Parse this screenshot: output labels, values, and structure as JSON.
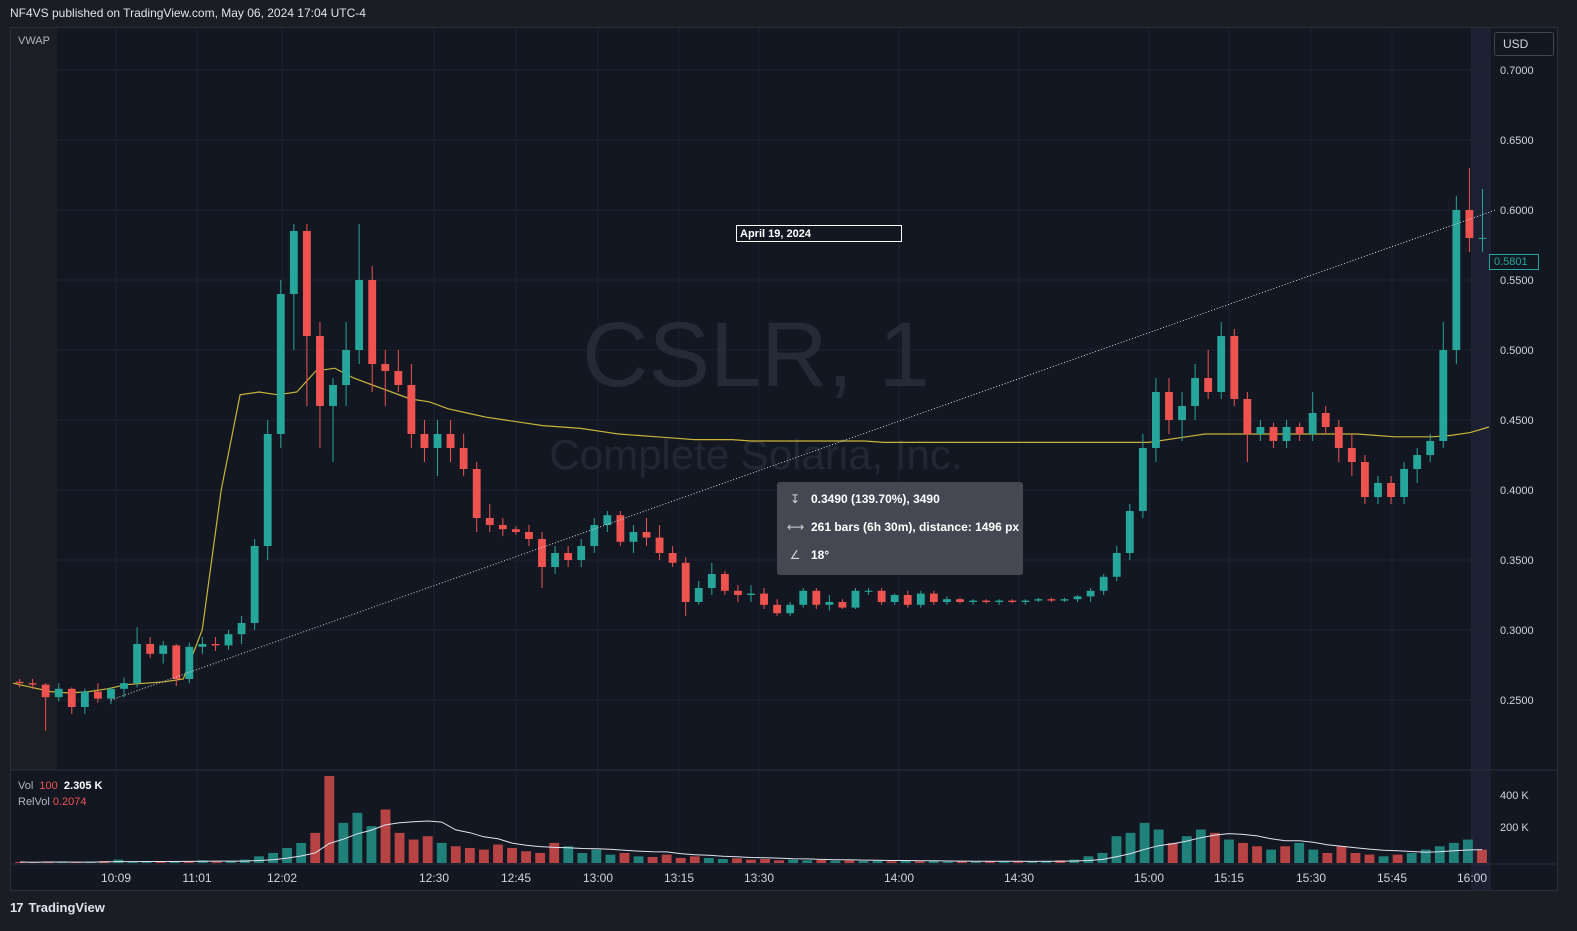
{
  "header": {
    "published": "NF4VS published on TradingView.com, May 06, 2024 17:04 UTC-4"
  },
  "footer": {
    "brand": "TradingView",
    "logo_icon": "tradingview-logo-icon"
  },
  "toolbar": {
    "currency": "USD"
  },
  "indicators": {
    "vwap_label": "VWAP"
  },
  "watermark": {
    "symbol": "CSLR, 1",
    "company": "Complete Solaria, Inc."
  },
  "annotation": {
    "date_label": "April 19, 2024"
  },
  "measure": {
    "price_range": "0.3490 (139.70%), 3490",
    "bars_range": "261 bars (6h 30m), distance: 1496 px",
    "angle": "18°"
  },
  "volume_legend": {
    "vol_label": "Vol",
    "vol_length": "100",
    "vol_value": "2.305 K",
    "relvol_label": "RelVol",
    "relvol_value": "0.2074"
  },
  "colors": {
    "background": "#131722",
    "up": "#26a69a",
    "down": "#ef5350",
    "vwap": "#c9b43a",
    "volume_ma": "#e0e3eb",
    "grid": "#1e222d"
  },
  "chart_data": {
    "type": "candlestick",
    "symbol": "CSLR",
    "interval": "1",
    "current_price": "0.5801",
    "y_ticks": [
      "0.7000",
      "0.6500",
      "0.6000",
      "0.5500",
      "0.5000",
      "0.4500",
      "0.4000",
      "0.3500",
      "0.3000",
      "0.2500"
    ],
    "x_ticks": [
      "10:09",
      "11:01",
      "12:02",
      "12:30",
      "12:45",
      "13:00",
      "13:15",
      "13:30",
      "14:00",
      "14:30",
      "15:00",
      "15:15",
      "15:30",
      "15:45",
      "16:00"
    ],
    "volume_ticks": [
      "400 K",
      "200 K"
    ],
    "ylim": [
      0.2,
      0.73
    ],
    "candles": [
      {
        "o": 0.263,
        "h": 0.265,
        "l": 0.259,
        "c": 0.262
      },
      {
        "o": 0.262,
        "h": 0.265,
        "l": 0.258,
        "c": 0.261
      },
      {
        "o": 0.261,
        "h": 0.262,
        "l": 0.228,
        "c": 0.252
      },
      {
        "o": 0.252,
        "h": 0.262,
        "l": 0.249,
        "c": 0.258
      },
      {
        "o": 0.258,
        "h": 0.259,
        "l": 0.24,
        "c": 0.245
      },
      {
        "o": 0.245,
        "h": 0.258,
        "l": 0.24,
        "c": 0.256
      },
      {
        "o": 0.256,
        "h": 0.262,
        "l": 0.248,
        "c": 0.251
      },
      {
        "o": 0.251,
        "h": 0.259,
        "l": 0.247,
        "c": 0.258
      },
      {
        "o": 0.258,
        "h": 0.266,
        "l": 0.252,
        "c": 0.262
      },
      {
        "o": 0.262,
        "h": 0.302,
        "l": 0.259,
        "c": 0.29
      },
      {
        "o": 0.29,
        "h": 0.295,
        "l": 0.28,
        "c": 0.283
      },
      {
        "o": 0.283,
        "h": 0.292,
        "l": 0.276,
        "c": 0.289
      },
      {
        "o": 0.289,
        "h": 0.29,
        "l": 0.26,
        "c": 0.265
      },
      {
        "o": 0.265,
        "h": 0.291,
        "l": 0.262,
        "c": 0.288
      },
      {
        "o": 0.288,
        "h": 0.295,
        "l": 0.283,
        "c": 0.29
      },
      {
        "o": 0.29,
        "h": 0.295,
        "l": 0.285,
        "c": 0.289
      },
      {
        "o": 0.289,
        "h": 0.3,
        "l": 0.286,
        "c": 0.297
      },
      {
        "o": 0.297,
        "h": 0.31,
        "l": 0.29,
        "c": 0.305
      },
      {
        "o": 0.305,
        "h": 0.365,
        "l": 0.3,
        "c": 0.36
      },
      {
        "o": 0.36,
        "h": 0.45,
        "l": 0.35,
        "c": 0.44
      },
      {
        "o": 0.44,
        "h": 0.55,
        "l": 0.43,
        "c": 0.54
      },
      {
        "o": 0.54,
        "h": 0.59,
        "l": 0.5,
        "c": 0.585
      },
      {
        "o": 0.585,
        "h": 0.59,
        "l": 0.46,
        "c": 0.51
      },
      {
        "o": 0.51,
        "h": 0.52,
        "l": 0.43,
        "c": 0.46
      },
      {
        "o": 0.46,
        "h": 0.48,
        "l": 0.42,
        "c": 0.475
      },
      {
        "o": 0.475,
        "h": 0.52,
        "l": 0.46,
        "c": 0.5
      },
      {
        "o": 0.5,
        "h": 0.59,
        "l": 0.49,
        "c": 0.55
      },
      {
        "o": 0.55,
        "h": 0.56,
        "l": 0.47,
        "c": 0.49
      },
      {
        "o": 0.49,
        "h": 0.5,
        "l": 0.46,
        "c": 0.485
      },
      {
        "o": 0.485,
        "h": 0.5,
        "l": 0.47,
        "c": 0.475
      },
      {
        "o": 0.475,
        "h": 0.49,
        "l": 0.43,
        "c": 0.44
      },
      {
        "o": 0.44,
        "h": 0.45,
        "l": 0.42,
        "c": 0.43
      },
      {
        "o": 0.43,
        "h": 0.45,
        "l": 0.41,
        "c": 0.44
      },
      {
        "o": 0.44,
        "h": 0.45,
        "l": 0.42,
        "c": 0.43
      },
      {
        "o": 0.43,
        "h": 0.44,
        "l": 0.41,
        "c": 0.415
      },
      {
        "o": 0.415,
        "h": 0.42,
        "l": 0.37,
        "c": 0.38
      },
      {
        "o": 0.38,
        "h": 0.39,
        "l": 0.37,
        "c": 0.375
      },
      {
        "o": 0.375,
        "h": 0.38,
        "l": 0.367,
        "c": 0.372
      },
      {
        "o": 0.372,
        "h": 0.374,
        "l": 0.368,
        "c": 0.37
      },
      {
        "o": 0.37,
        "h": 0.375,
        "l": 0.36,
        "c": 0.365
      },
      {
        "o": 0.365,
        "h": 0.37,
        "l": 0.33,
        "c": 0.345
      },
      {
        "o": 0.345,
        "h": 0.36,
        "l": 0.34,
        "c": 0.355
      },
      {
        "o": 0.355,
        "h": 0.36,
        "l": 0.345,
        "c": 0.35
      },
      {
        "o": 0.35,
        "h": 0.365,
        "l": 0.345,
        "c": 0.36
      },
      {
        "o": 0.36,
        "h": 0.38,
        "l": 0.355,
        "c": 0.375
      },
      {
        "o": 0.375,
        "h": 0.385,
        "l": 0.37,
        "c": 0.382
      },
      {
        "o": 0.382,
        "h": 0.385,
        "l": 0.36,
        "c": 0.363
      },
      {
        "o": 0.363,
        "h": 0.375,
        "l": 0.355,
        "c": 0.37
      },
      {
        "o": 0.37,
        "h": 0.38,
        "l": 0.36,
        "c": 0.366
      },
      {
        "o": 0.366,
        "h": 0.375,
        "l": 0.35,
        "c": 0.355
      },
      {
        "o": 0.355,
        "h": 0.36,
        "l": 0.345,
        "c": 0.348
      },
      {
        "o": 0.348,
        "h": 0.352,
        "l": 0.31,
        "c": 0.32
      },
      {
        "o": 0.32,
        "h": 0.335,
        "l": 0.318,
        "c": 0.33
      },
      {
        "o": 0.33,
        "h": 0.348,
        "l": 0.325,
        "c": 0.34
      },
      {
        "o": 0.34,
        "h": 0.342,
        "l": 0.325,
        "c": 0.328
      },
      {
        "o": 0.328,
        "h": 0.332,
        "l": 0.32,
        "c": 0.325
      },
      {
        "o": 0.325,
        "h": 0.332,
        "l": 0.32,
        "c": 0.326
      },
      {
        "o": 0.326,
        "h": 0.33,
        "l": 0.315,
        "c": 0.318
      },
      {
        "o": 0.318,
        "h": 0.322,
        "l": 0.31,
        "c": 0.312
      },
      {
        "o": 0.312,
        "h": 0.32,
        "l": 0.31,
        "c": 0.318
      },
      {
        "o": 0.318,
        "h": 0.33,
        "l": 0.316,
        "c": 0.328
      },
      {
        "o": 0.328,
        "h": 0.33,
        "l": 0.315,
        "c": 0.318
      },
      {
        "o": 0.318,
        "h": 0.325,
        "l": 0.314,
        "c": 0.32
      },
      {
        "o": 0.32,
        "h": 0.322,
        "l": 0.315,
        "c": 0.316
      },
      {
        "o": 0.316,
        "h": 0.33,
        "l": 0.315,
        "c": 0.328
      },
      {
        "o": 0.328,
        "h": 0.33,
        "l": 0.325,
        "c": 0.328
      },
      {
        "o": 0.328,
        "h": 0.33,
        "l": 0.318,
        "c": 0.32
      },
      {
        "o": 0.32,
        "h": 0.326,
        "l": 0.318,
        "c": 0.325
      },
      {
        "o": 0.325,
        "h": 0.328,
        "l": 0.316,
        "c": 0.318
      },
      {
        "o": 0.318,
        "h": 0.328,
        "l": 0.316,
        "c": 0.326
      },
      {
        "o": 0.326,
        "h": 0.328,
        "l": 0.318,
        "c": 0.32
      },
      {
        "o": 0.32,
        "h": 0.324,
        "l": 0.318,
        "c": 0.322
      },
      {
        "o": 0.322,
        "h": 0.323,
        "l": 0.319,
        "c": 0.32
      },
      {
        "o": 0.32,
        "h": 0.322,
        "l": 0.318,
        "c": 0.321
      },
      {
        "o": 0.321,
        "h": 0.322,
        "l": 0.319,
        "c": 0.32
      },
      {
        "o": 0.32,
        "h": 0.322,
        "l": 0.318,
        "c": 0.321
      },
      {
        "o": 0.321,
        "h": 0.322,
        "l": 0.319,
        "c": 0.32
      },
      {
        "o": 0.32,
        "h": 0.322,
        "l": 0.318,
        "c": 0.321
      },
      {
        "o": 0.321,
        "h": 0.323,
        "l": 0.32,
        "c": 0.322
      },
      {
        "o": 0.322,
        "h": 0.323,
        "l": 0.32,
        "c": 0.321
      },
      {
        "o": 0.321,
        "h": 0.323,
        "l": 0.32,
        "c": 0.322
      },
      {
        "o": 0.322,
        "h": 0.325,
        "l": 0.32,
        "c": 0.324
      },
      {
        "o": 0.324,
        "h": 0.33,
        "l": 0.32,
        "c": 0.328
      },
      {
        "o": 0.328,
        "h": 0.34,
        "l": 0.325,
        "c": 0.338
      },
      {
        "o": 0.338,
        "h": 0.36,
        "l": 0.335,
        "c": 0.355
      },
      {
        "o": 0.355,
        "h": 0.39,
        "l": 0.35,
        "c": 0.385
      },
      {
        "o": 0.385,
        "h": 0.44,
        "l": 0.38,
        "c": 0.43
      },
      {
        "o": 0.43,
        "h": 0.48,
        "l": 0.42,
        "c": 0.47
      },
      {
        "o": 0.47,
        "h": 0.48,
        "l": 0.44,
        "c": 0.45
      },
      {
        "o": 0.45,
        "h": 0.47,
        "l": 0.435,
        "c": 0.46
      },
      {
        "o": 0.46,
        "h": 0.49,
        "l": 0.45,
        "c": 0.48
      },
      {
        "o": 0.48,
        "h": 0.5,
        "l": 0.465,
        "c": 0.47
      },
      {
        "o": 0.47,
        "h": 0.52,
        "l": 0.465,
        "c": 0.51
      },
      {
        "o": 0.51,
        "h": 0.515,
        "l": 0.46,
        "c": 0.465
      },
      {
        "o": 0.465,
        "h": 0.47,
        "l": 0.42,
        "c": 0.44
      },
      {
        "o": 0.44,
        "h": 0.45,
        "l": 0.435,
        "c": 0.445
      },
      {
        "o": 0.445,
        "h": 0.448,
        "l": 0.43,
        "c": 0.435
      },
      {
        "o": 0.435,
        "h": 0.45,
        "l": 0.43,
        "c": 0.445
      },
      {
        "o": 0.445,
        "h": 0.448,
        "l": 0.435,
        "c": 0.44
      },
      {
        "o": 0.44,
        "h": 0.47,
        "l": 0.435,
        "c": 0.455
      },
      {
        "o": 0.455,
        "h": 0.46,
        "l": 0.44,
        "c": 0.445
      },
      {
        "o": 0.445,
        "h": 0.45,
        "l": 0.42,
        "c": 0.43
      },
      {
        "o": 0.43,
        "h": 0.44,
        "l": 0.41,
        "c": 0.42
      },
      {
        "o": 0.42,
        "h": 0.425,
        "l": 0.39,
        "c": 0.395
      },
      {
        "o": 0.395,
        "h": 0.41,
        "l": 0.39,
        "c": 0.405
      },
      {
        "o": 0.405,
        "h": 0.41,
        "l": 0.39,
        "c": 0.395
      },
      {
        "o": 0.395,
        "h": 0.42,
        "l": 0.39,
        "c": 0.415
      },
      {
        "o": 0.415,
        "h": 0.43,
        "l": 0.405,
        "c": 0.425
      },
      {
        "o": 0.425,
        "h": 0.44,
        "l": 0.42,
        "c": 0.435
      },
      {
        "o": 0.435,
        "h": 0.52,
        "l": 0.43,
        "c": 0.5
      },
      {
        "o": 0.5,
        "h": 0.61,
        "l": 0.49,
        "c": 0.6
      },
      {
        "o": 0.6,
        "h": 0.63,
        "l": 0.57,
        "c": 0.58
      },
      {
        "o": 0.58,
        "h": 0.615,
        "l": 0.57,
        "c": 0.5801
      }
    ],
    "vwap": [
      0.262,
      0.259,
      0.256,
      0.255,
      0.256,
      0.258,
      0.261,
      0.262,
      0.263,
      0.265,
      0.3,
      0.4,
      0.468,
      0.47,
      0.468,
      0.47,
      0.485,
      0.487,
      0.48,
      0.475,
      0.47,
      0.465,
      0.463,
      0.458,
      0.455,
      0.452,
      0.45,
      0.448,
      0.446,
      0.445,
      0.444,
      0.442,
      0.44,
      0.439,
      0.438,
      0.437,
      0.436,
      0.436,
      0.436,
      0.435,
      0.435,
      0.435,
      0.435,
      0.435,
      0.435,
      0.435,
      0.434,
      0.434,
      0.434,
      0.434,
      0.434,
      0.434,
      0.434,
      0.434,
      0.434,
      0.434,
      0.434,
      0.434,
      0.434,
      0.434,
      0.434,
      0.436,
      0.438,
      0.44,
      0.44,
      0.44,
      0.44,
      0.44,
      0.44,
      0.44,
      0.44,
      0.44,
      0.439,
      0.438,
      0.438,
      0.438,
      0.439,
      0.441,
      0.445
    ],
    "volume": [
      3,
      2,
      4,
      3,
      2,
      3,
      6,
      10,
      4,
      6,
      3,
      4,
      5,
      8,
      4,
      6,
      10,
      20,
      30,
      45,
      60,
      90,
      260,
      120,
      150,
      110,
      160,
      90,
      70,
      80,
      60,
      50,
      45,
      40,
      55,
      45,
      35,
      30,
      60,
      50,
      30,
      40,
      25,
      30,
      20,
      18,
      25,
      15,
      20,
      15,
      12,
      14,
      10,
      12,
      8,
      10,
      8,
      9,
      7,
      8,
      6,
      7,
      5,
      6,
      5,
      6,
      4,
      5,
      4,
      5,
      6,
      4,
      5,
      6,
      8,
      10,
      20,
      30,
      80,
      90,
      120,
      100,
      60,
      80,
      100,
      90,
      70,
      60,
      50,
      40,
      50,
      60,
      40,
      30,
      50,
      30,
      25,
      20,
      25,
      30,
      40,
      50,
      60,
      70,
      40
    ],
    "measure_line": {
      "from": {
        "x_index": 7,
        "price": 0.25
      },
      "to": {
        "x_index": 113,
        "price": 0.6
      }
    }
  }
}
